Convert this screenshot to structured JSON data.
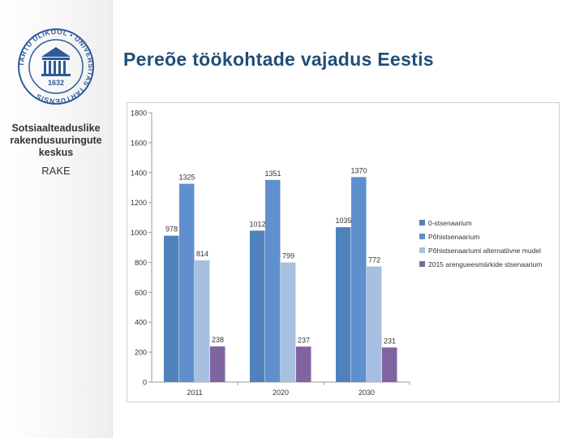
{
  "sidebar": {
    "logo_ring_text": "TARTU ÜLIKOOL • UNIVERSITAS TARTUENSIS",
    "logo_year": "1632",
    "centre_name": "Sotsiaalteaduslike rakendusuuringute keskus",
    "centre_abbr": "RAKE"
  },
  "page": {
    "title": "Pereõe töökohtade vajadus Eestis"
  },
  "chart_data": {
    "type": "bar",
    "categories": [
      "2011",
      "2020",
      "2030"
    ],
    "ylim": [
      0,
      1800
    ],
    "yticks": [
      0,
      200,
      400,
      600,
      800,
      1000,
      1200,
      1400,
      1600,
      1800
    ],
    "grid": false,
    "legend_position": "right",
    "series": [
      {
        "name": "0-stsenaarium",
        "values": [
          978,
          1012,
          1035
        ],
        "color": "#4f81bd"
      },
      {
        "name": "Põhistsenaarium",
        "values": [
          1325,
          1351,
          1370
        ],
        "color": "#5f8fcc"
      },
      {
        "name": "Põhistsenaariumi alternatiivne mudel",
        "values": [
          814,
          799,
          772
        ],
        "color": "#a7bfe0"
      },
      {
        "name": "2015 arengueesmärkide stsenaarium",
        "values": [
          238,
          237,
          231
        ],
        "color": "#8064a2"
      }
    ]
  }
}
